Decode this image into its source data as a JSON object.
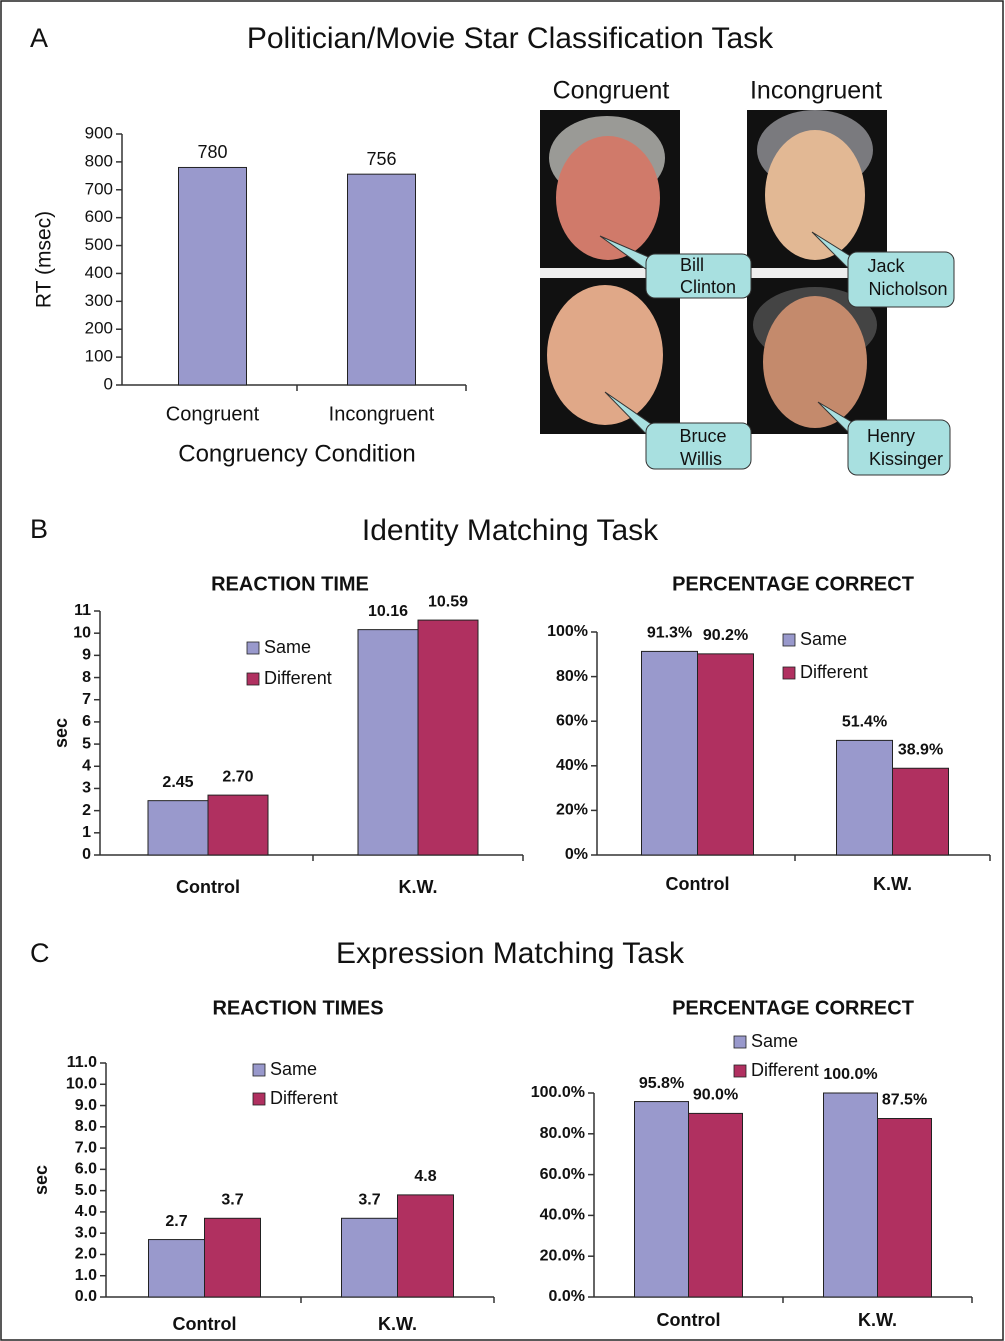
{
  "panels": [
    {
      "letter": "A",
      "title": "Politician/Movie Star Classification Task"
    },
    {
      "letter": "B",
      "title": "Identity Matching Task"
    },
    {
      "letter": "C",
      "title": "Expression Matching Task"
    }
  ],
  "faces": {
    "columns": [
      "Congruent",
      "Incongruent"
    ],
    "names": [
      [
        "Bill",
        "Clinton"
      ],
      [
        "Jack",
        "Nicholson"
      ],
      [
        "Bruce",
        "Willis"
      ],
      [
        "Henry",
        "Kissinger"
      ]
    ]
  },
  "chart_data": [
    {
      "type": "bar",
      "y_label": "RT (msec)",
      "x_label": "Congruency Condition",
      "categories": [
        "Congruent",
        "Incongruent"
      ],
      "values": [
        780,
        756
      ],
      "color": "#9999cc",
      "ylim": [
        0,
        900
      ],
      "yticks": [
        0,
        100,
        200,
        300,
        400,
        500,
        600,
        700,
        800,
        900
      ]
    },
    {
      "type": "bar",
      "title": "REACTION TIME",
      "y_label": "sec",
      "categories": [
        "Control",
        "K.W."
      ],
      "series": [
        {
          "name": "Same",
          "color": "#9999cc",
          "values": [
            2.45,
            10.16
          ],
          "value_labels": [
            "2.45",
            "10.16"
          ]
        },
        {
          "name": "Different",
          "color": "#b03060",
          "values": [
            2.7,
            10.59
          ],
          "value_labels": [
            "2.70",
            "10.59"
          ]
        }
      ],
      "ylim": [
        0,
        11
      ],
      "yticks": [
        0,
        1,
        2,
        3,
        4,
        5,
        6,
        7,
        8,
        9,
        10,
        11
      ]
    },
    {
      "type": "bar",
      "title": "PERCENTAGE CORRECT",
      "categories": [
        "Control",
        "K.W."
      ],
      "series": [
        {
          "name": "Same",
          "color": "#9999cc",
          "values": [
            91.3,
            51.4
          ],
          "value_labels": [
            "91.3%",
            "51.4%"
          ]
        },
        {
          "name": "Different",
          "color": "#b03060",
          "values": [
            90.2,
            38.9
          ],
          "value_labels": [
            "90.2%",
            "38.9%"
          ]
        }
      ],
      "ylim": [
        0,
        100
      ],
      "yticks": [
        {
          "value": 0,
          "label": "0%"
        },
        {
          "value": 20,
          "label": "20%"
        },
        {
          "value": 40,
          "label": "40%"
        },
        {
          "value": 60,
          "label": "60%"
        },
        {
          "value": 80,
          "label": "80%"
        },
        {
          "value": 100,
          "label": "100%"
        }
      ]
    },
    {
      "type": "bar",
      "title": "REACTION TIMES",
      "y_label": "sec",
      "categories": [
        "Control",
        "K.W."
      ],
      "series": [
        {
          "name": "Same",
          "color": "#9999cc",
          "values": [
            2.7,
            3.7
          ]
        },
        {
          "name": "Different",
          "color": "#b03060",
          "values": [
            3.7,
            4.8
          ]
        }
      ],
      "ylim": [
        0,
        11
      ],
      "yticks": [
        {
          "value": 0,
          "label": "0.0"
        },
        {
          "value": 1,
          "label": "1.0"
        },
        {
          "value": 2,
          "label": "2.0"
        },
        {
          "value": 3,
          "label": "3.0"
        },
        {
          "value": 4,
          "label": "4.0"
        },
        {
          "value": 5,
          "label": "5.0"
        },
        {
          "value": 6,
          "label": "6.0"
        },
        {
          "value": 7,
          "label": "7.0"
        },
        {
          "value": 8,
          "label": "8.0"
        },
        {
          "value": 9,
          "label": "9.0"
        },
        {
          "value": 10,
          "label": "10.0"
        },
        {
          "value": 11,
          "label": "11.0"
        }
      ]
    },
    {
      "type": "bar",
      "title": "PERCENTAGE CORRECT",
      "categories": [
        "Control",
        "K.W."
      ],
      "series": [
        {
          "name": "Same",
          "color": "#9999cc",
          "values": [
            95.8,
            100.0
          ],
          "value_labels": [
            "95.8%",
            "100.0%"
          ]
        },
        {
          "name": "Different",
          "color": "#b03060",
          "values": [
            90.0,
            87.5
          ],
          "value_labels": [
            "90.0%",
            "87.5%"
          ]
        }
      ],
      "ylim": [
        0,
        100
      ],
      "yticks": [
        {
          "value": 0,
          "label": "0.0%"
        },
        {
          "value": 20,
          "label": "20.0%"
        },
        {
          "value": 40,
          "label": "40.0%"
        },
        {
          "value": 60,
          "label": "60.0%"
        },
        {
          "value": 80,
          "label": "80.0%"
        },
        {
          "value": 100,
          "label": "100.0%"
        }
      ]
    }
  ]
}
